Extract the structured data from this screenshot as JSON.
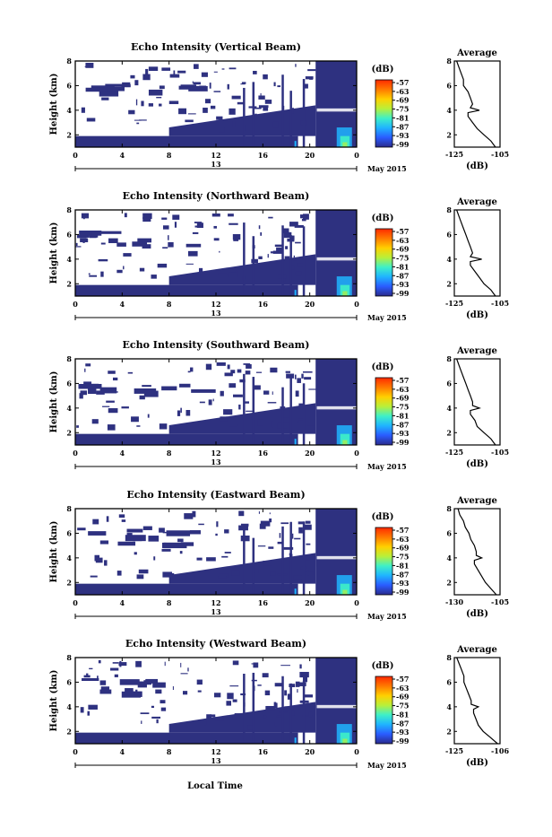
{
  "chart_data": {
    "type": "heatmap",
    "xlabel": "Local Time",
    "date_label": "13",
    "date_suffix": "May 2015",
    "x_ticks": [
      "0",
      "4",
      "8",
      "12",
      "16",
      "20",
      "0"
    ],
    "x_range_hours": [
      0,
      24
    ],
    "colorbar": {
      "unit": "(dB)",
      "ticks": [
        "-57",
        "-63",
        "-69",
        "-75",
        "-81",
        "-87",
        "-93",
        "-99"
      ],
      "colors": [
        "#ff2a00",
        "#ff7a00",
        "#ffd000",
        "#b8f03a",
        "#3ef0c8",
        "#1fb4ff",
        "#2a5cff",
        "#2a2a8c"
      ]
    },
    "panels": [
      {
        "title": "Echo Intensity (Vertical Beam)",
        "ylabel": "Height (km)",
        "y_ticks": [
          "8",
          "6",
          "4",
          "2"
        ],
        "ylim": [
          1,
          8
        ],
        "avg_title": "Average",
        "avg_xlabel": "(dB)",
        "avg_x_ticks": [
          "-125",
          "-105"
        ],
        "avg_xlim": [
          -125,
          -105
        ],
        "avg_profile": [
          [
            1.0,
            -107
          ],
          [
            1.5,
            -109
          ],
          [
            2.0,
            -112
          ],
          [
            2.5,
            -115
          ],
          [
            3.0,
            -117
          ],
          [
            3.5,
            -119
          ],
          [
            3.8,
            -119
          ],
          [
            4.0,
            -114
          ],
          [
            4.2,
            -118
          ],
          [
            4.5,
            -117
          ],
          [
            5.0,
            -118
          ],
          [
            5.5,
            -119
          ],
          [
            6.0,
            -121
          ],
          [
            6.5,
            -121
          ],
          [
            7.0,
            -122
          ],
          [
            7.5,
            -123
          ],
          [
            8.0,
            -124
          ]
        ],
        "echo_layer_height_km": 4.0
      },
      {
        "title": "Echo Intensity (Northward Beam)",
        "ylabel": "Height (km)",
        "y_ticks": [
          "8",
          "6",
          "4",
          "2"
        ],
        "ylim": [
          1,
          8
        ],
        "avg_title": "Average",
        "avg_xlabel": "(dB)",
        "avg_x_ticks": [
          "-125",
          "-105"
        ],
        "avg_xlim": [
          -125,
          -105
        ],
        "avg_profile": [
          [
            1.0,
            -107
          ],
          [
            1.5,
            -109
          ],
          [
            2.0,
            -112
          ],
          [
            2.5,
            -114
          ],
          [
            3.0,
            -116
          ],
          [
            3.5,
            -118
          ],
          [
            3.8,
            -118
          ],
          [
            4.0,
            -113
          ],
          [
            4.2,
            -118
          ],
          [
            4.5,
            -117
          ],
          [
            5.0,
            -118
          ],
          [
            5.5,
            -119
          ],
          [
            6.0,
            -120
          ],
          [
            6.5,
            -121
          ],
          [
            7.0,
            -122
          ],
          [
            7.5,
            -123
          ],
          [
            8.0,
            -124
          ]
        ],
        "echo_layer_height_km": 4.0
      },
      {
        "title": "Echo Intensity (Southward Beam)",
        "ylabel": "Height (km)",
        "y_ticks": [
          "8",
          "6",
          "4",
          "2"
        ],
        "ylim": [
          1,
          8
        ],
        "avg_title": "Average",
        "avg_xlabel": "(dB)",
        "avg_x_ticks": [
          "-125",
          "-105"
        ],
        "avg_xlim": [
          -125,
          -105
        ],
        "avg_profile": [
          [
            1.0,
            -107
          ],
          [
            1.5,
            -109
          ],
          [
            2.0,
            -112
          ],
          [
            2.5,
            -115
          ],
          [
            3.0,
            -116
          ],
          [
            3.5,
            -118
          ],
          [
            3.8,
            -118
          ],
          [
            4.0,
            -114
          ],
          [
            4.2,
            -117
          ],
          [
            4.5,
            -117
          ],
          [
            5.0,
            -118
          ],
          [
            5.5,
            -119
          ],
          [
            6.0,
            -120
          ],
          [
            6.5,
            -121
          ],
          [
            7.0,
            -122
          ],
          [
            7.5,
            -123
          ],
          [
            8.0,
            -124
          ]
        ],
        "echo_layer_height_km": 4.0
      },
      {
        "title": "Echo Intensity (Eastward Beam)",
        "ylabel": "Height (km)",
        "y_ticks": [
          "8",
          "6",
          "4",
          "2"
        ],
        "ylim": [
          1,
          8
        ],
        "avg_title": "Average",
        "avg_xlabel": "(dB)",
        "avg_x_ticks": [
          "-130",
          "-105"
        ],
        "avg_xlim": [
          -130,
          -105
        ],
        "avg_profile": [
          [
            1.0,
            -107
          ],
          [
            1.5,
            -110
          ],
          [
            2.0,
            -113
          ],
          [
            2.5,
            -115
          ],
          [
            3.0,
            -117
          ],
          [
            3.5,
            -119
          ],
          [
            3.8,
            -119
          ],
          [
            4.0,
            -115
          ],
          [
            4.2,
            -118
          ],
          [
            4.5,
            -118
          ],
          [
            5.0,
            -119
          ],
          [
            5.5,
            -121
          ],
          [
            6.0,
            -122
          ],
          [
            6.5,
            -124
          ],
          [
            7.0,
            -125
          ],
          [
            7.5,
            -127
          ],
          [
            8.0,
            -128
          ]
        ],
        "echo_layer_height_km": 4.0
      },
      {
        "title": "Echo Intensity (Westward Beam)",
        "ylabel": "Height (km)",
        "y_ticks": [
          "8",
          "6",
          "4",
          "2"
        ],
        "ylim": [
          1,
          8
        ],
        "avg_title": "Average",
        "avg_xlabel": "(dB)",
        "avg_x_ticks": [
          "-125",
          "-106"
        ],
        "avg_xlim": [
          -125,
          -106
        ],
        "avg_profile": [
          [
            1.0,
            -107
          ],
          [
            1.5,
            -110
          ],
          [
            2.0,
            -113
          ],
          [
            2.5,
            -115
          ],
          [
            3.0,
            -116
          ],
          [
            3.5,
            -117
          ],
          [
            3.8,
            -117
          ],
          [
            4.0,
            -115
          ],
          [
            4.2,
            -118
          ],
          [
            4.5,
            -118
          ],
          [
            5.0,
            -119
          ],
          [
            5.5,
            -120
          ],
          [
            6.0,
            -121
          ],
          [
            6.5,
            -121
          ],
          [
            7.0,
            -122
          ],
          [
            7.5,
            -123
          ],
          [
            8.0,
            -124
          ]
        ],
        "echo_layer_height_km": 4.0
      }
    ]
  }
}
